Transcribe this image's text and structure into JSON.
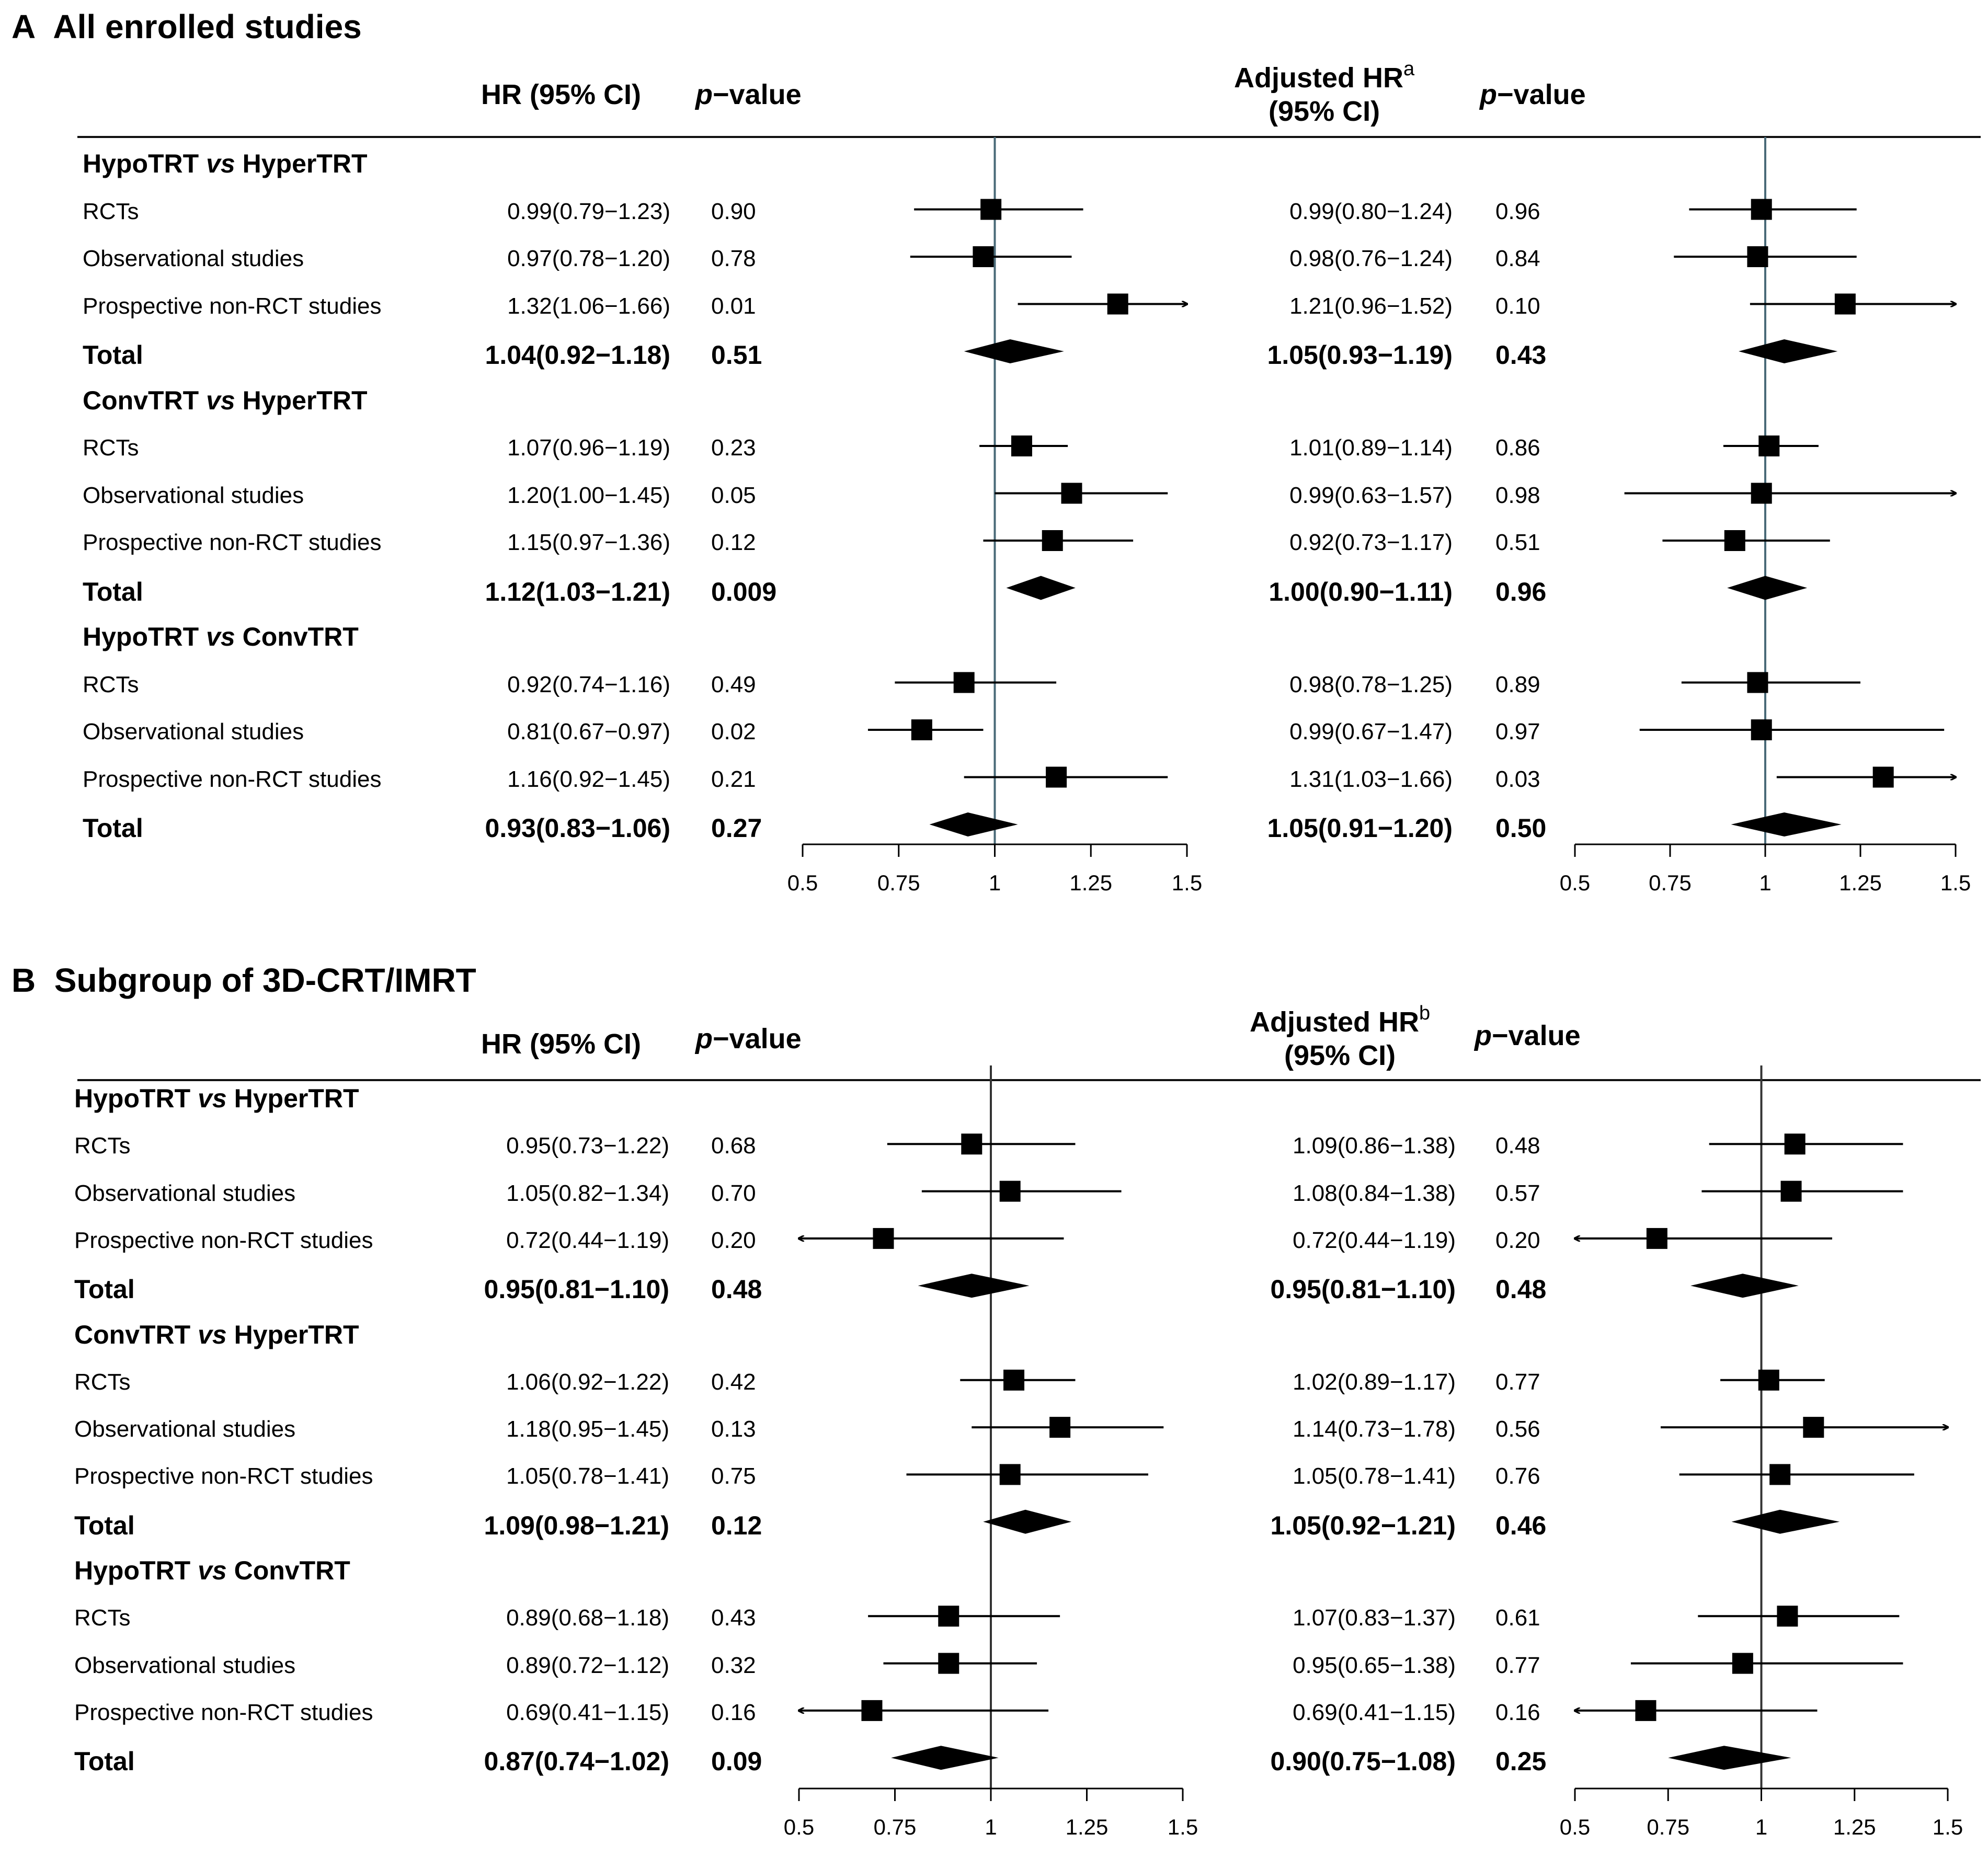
{
  "colors": {
    "ref_line_a": "#4a6a78",
    "ref_line_b": "#333333",
    "ink": "#000000"
  },
  "chart_data": [
    {
      "type": "forest",
      "panel_label": "A",
      "title": "All enrolled studies",
      "columns": {
        "hr": "HR (95% CI)",
        "p1_prefix": "p",
        "p1_suffix": "−value",
        "adj": "Adjusted HR",
        "adj_sup": "a",
        "adj_line2": "(95% CI)",
        "p2_prefix": "p",
        "p2_suffix": "−value"
      },
      "xlim": [
        0.5,
        1.5
      ],
      "reference": 1,
      "ticks": [
        0.5,
        0.75,
        1,
        1.25,
        1.5
      ],
      "tick_labels": [
        "0.5",
        "0.75",
        "1",
        "1.25",
        "1.5"
      ],
      "groups": [
        {
          "label_pre": "HypoTRT ",
          "label_vs": "vs",
          "label_post": " HyperTRT",
          "rows": [
            {
              "label": "RCTs",
              "hr_text": "0.99(0.79−1.23)",
              "p": "0.90",
              "adj_text": "0.99(0.80−1.24)",
              "p_adj": "0.96",
              "hr": 0.99,
              "lo": 0.79,
              "hi": 1.23,
              "ahr": 0.99,
              "alo": 0.8,
              "ahi": 1.24
            },
            {
              "label": "Observational studies",
              "hr_text": "0.97(0.78−1.20)",
              "p": "0.78",
              "adj_text": "0.98(0.76−1.24)",
              "p_adj": "0.84",
              "hr": 0.97,
              "lo": 0.78,
              "hi": 1.2,
              "ahr": 0.98,
              "alo": 0.76,
              "ahi": 1.24
            },
            {
              "label": "Prospective non-RCT studies",
              "hr_text": "1.32(1.06−1.66)",
              "p": "0.01",
              "adj_text": "1.21(0.96−1.52)",
              "p_adj": "0.10",
              "hr": 1.32,
              "lo": 1.06,
              "hi": 1.66,
              "ahr": 1.21,
              "alo": 0.96,
              "ahi": 1.52
            }
          ],
          "total": {
            "label": "Total",
            "hr_text": "1.04(0.92−1.18)",
            "p": "0.51",
            "adj_text": "1.05(0.93−1.19)",
            "p_adj": "0.43",
            "hr": 1.04,
            "lo": 0.92,
            "hi": 1.18,
            "ahr": 1.05,
            "alo": 0.93,
            "ahi": 1.19
          }
        },
        {
          "label_pre": "ConvTRT ",
          "label_vs": "vs",
          "label_post": " HyperTRT",
          "rows": [
            {
              "label": "RCTs",
              "hr_text": "1.07(0.96−1.19)",
              "p": "0.23",
              "adj_text": "1.01(0.89−1.14)",
              "p_adj": "0.86",
              "hr": 1.07,
              "lo": 0.96,
              "hi": 1.19,
              "ahr": 1.01,
              "alo": 0.89,
              "ahi": 1.14
            },
            {
              "label": "Observational studies",
              "hr_text": "1.20(1.00−1.45)",
              "p": "0.05",
              "adj_text": "0.99(0.63−1.57)",
              "p_adj": "0.98",
              "hr": 1.2,
              "lo": 1.0,
              "hi": 1.45,
              "ahr": 0.99,
              "alo": 0.63,
              "ahi": 1.57
            },
            {
              "label": "Prospective non-RCT studies",
              "hr_text": "1.15(0.97−1.36)",
              "p": "0.12",
              "adj_text": "0.92(0.73−1.17)",
              "p_adj": "0.51",
              "hr": 1.15,
              "lo": 0.97,
              "hi": 1.36,
              "ahr": 0.92,
              "alo": 0.73,
              "ahi": 1.17
            }
          ],
          "total": {
            "label": "Total",
            "hr_text": "1.12(1.03−1.21)",
            "p": "0.009",
            "adj_text": "1.00(0.90−1.11)",
            "p_adj": "0.96",
            "hr": 1.12,
            "lo": 1.03,
            "hi": 1.21,
            "ahr": 1.0,
            "alo": 0.9,
            "ahi": 1.11
          }
        },
        {
          "label_pre": "HypoTRT ",
          "label_vs": "vs",
          "label_post": " ConvTRT",
          "rows": [
            {
              "label": "RCTs",
              "hr_text": "0.92(0.74−1.16)",
              "p": "0.49",
              "adj_text": "0.98(0.78−1.25)",
              "p_adj": "0.89",
              "hr": 0.92,
              "lo": 0.74,
              "hi": 1.16,
              "ahr": 0.98,
              "alo": 0.78,
              "ahi": 1.25
            },
            {
              "label": "Observational studies",
              "hr_text": "0.81(0.67−0.97)",
              "p": "0.02",
              "adj_text": "0.99(0.67−1.47)",
              "p_adj": "0.97",
              "hr": 0.81,
              "lo": 0.67,
              "hi": 0.97,
              "ahr": 0.99,
              "alo": 0.67,
              "ahi": 1.47
            },
            {
              "label": "Prospective non-RCT studies",
              "hr_text": "1.16(0.92−1.45)",
              "p": "0.21",
              "adj_text": "1.31(1.03−1.66)",
              "p_adj": "0.03",
              "hr": 1.16,
              "lo": 0.92,
              "hi": 1.45,
              "ahr": 1.31,
              "alo": 1.03,
              "ahi": 1.66
            }
          ],
          "total": {
            "label": "Total",
            "hr_text": "0.93(0.83−1.06)",
            "p": "0.27",
            "adj_text": "1.05(0.91−1.20)",
            "p_adj": "0.50",
            "hr": 0.93,
            "lo": 0.83,
            "hi": 1.06,
            "ahr": 1.05,
            "alo": 0.91,
            "ahi": 1.2
          }
        }
      ]
    },
    {
      "type": "forest",
      "panel_label": "B",
      "title": "Subgroup of 3D-CRT/IMRT",
      "columns": {
        "hr": "HR (95% CI)",
        "p1_prefix": "p",
        "p1_suffix": "−value",
        "adj": "Adjusted HR",
        "adj_sup": "b",
        "adj_line2": "(95% CI)",
        "p2_prefix": "p",
        "p2_suffix": "−value"
      },
      "xlim": [
        0.5,
        1.5
      ],
      "reference": 1,
      "ticks": [
        0.5,
        0.75,
        1,
        1.25,
        1.5
      ],
      "tick_labels": [
        "0.5",
        "0.75",
        "1",
        "1.25",
        "1.5"
      ],
      "groups": [
        {
          "label_pre": "HypoTRT ",
          "label_vs": "vs",
          "label_post": " HyperTRT",
          "rows": [
            {
              "label": "RCTs",
              "hr_text": "0.95(0.73−1.22)",
              "p": "0.68",
              "adj_text": "1.09(0.86−1.38)",
              "p_adj": "0.48",
              "hr": 0.95,
              "lo": 0.73,
              "hi": 1.22,
              "ahr": 1.09,
              "alo": 0.86,
              "ahi": 1.38
            },
            {
              "label": "Observational studies",
              "hr_text": "1.05(0.82−1.34)",
              "p": "0.70",
              "adj_text": "1.08(0.84−1.38)",
              "p_adj": "0.57",
              "hr": 1.05,
              "lo": 0.82,
              "hi": 1.34,
              "ahr": 1.08,
              "alo": 0.84,
              "ahi": 1.38
            },
            {
              "label": "Prospective non-RCT studies",
              "hr_text": "0.72(0.44−1.19)",
              "p": "0.20",
              "adj_text": "0.72(0.44−1.19)",
              "p_adj": "0.20",
              "hr": 0.72,
              "lo": 0.44,
              "hi": 1.19,
              "ahr": 0.72,
              "alo": 0.44,
              "ahi": 1.19
            }
          ],
          "total": {
            "label": "Total",
            "hr_text": "0.95(0.81−1.10)",
            "p": "0.48",
            "adj_text": "0.95(0.81−1.10)",
            "p_adj": "0.48",
            "hr": 0.95,
            "lo": 0.81,
            "hi": 1.1,
            "ahr": 0.95,
            "alo": 0.81,
            "ahi": 1.1
          }
        },
        {
          "label_pre": "ConvTRT ",
          "label_vs": "vs",
          "label_post": " HyperTRT",
          "rows": [
            {
              "label": "RCTs",
              "hr_text": "1.06(0.92−1.22)",
              "p": "0.42",
              "adj_text": "1.02(0.89−1.17)",
              "p_adj": "0.77",
              "hr": 1.06,
              "lo": 0.92,
              "hi": 1.22,
              "ahr": 1.02,
              "alo": 0.89,
              "ahi": 1.17
            },
            {
              "label": "Observational studies",
              "hr_text": "1.18(0.95−1.45)",
              "p": "0.13",
              "adj_text": "1.14(0.73−1.78)",
              "p_adj": "0.56",
              "hr": 1.18,
              "lo": 0.95,
              "hi": 1.45,
              "ahr": 1.14,
              "alo": 0.73,
              "ahi": 1.78
            },
            {
              "label": "Prospective non-RCT studies",
              "hr_text": "1.05(0.78−1.41)",
              "p": "0.75",
              "adj_text": "1.05(0.78−1.41)",
              "p_adj": "0.76",
              "hr": 1.05,
              "lo": 0.78,
              "hi": 1.41,
              "ahr": 1.05,
              "alo": 0.78,
              "ahi": 1.41
            }
          ],
          "total": {
            "label": "Total",
            "hr_text": "1.09(0.98−1.21)",
            "p": "0.12",
            "adj_text": "1.05(0.92−1.21)",
            "p_adj": "0.46",
            "hr": 1.09,
            "lo": 0.98,
            "hi": 1.21,
            "ahr": 1.05,
            "alo": 0.92,
            "ahi": 1.21
          }
        },
        {
          "label_pre": "HypoTRT ",
          "label_vs": "vs",
          "label_post": " ConvTRT",
          "rows": [
            {
              "label": "RCTs",
              "hr_text": "0.89(0.68−1.18)",
              "p": "0.43",
              "adj_text": "1.07(0.83−1.37)",
              "p_adj": "0.61",
              "hr": 0.89,
              "lo": 0.68,
              "hi": 1.18,
              "ahr": 1.07,
              "alo": 0.83,
              "ahi": 1.37
            },
            {
              "label": "Observational studies",
              "hr_text": "0.89(0.72−1.12)",
              "p": "0.32",
              "adj_text": "0.95(0.65−1.38)",
              "p_adj": "0.77",
              "hr": 0.89,
              "lo": 0.72,
              "hi": 1.12,
              "ahr": 0.95,
              "alo": 0.65,
              "ahi": 1.38
            },
            {
              "label": "Prospective non-RCT studies",
              "hr_text": "0.69(0.41−1.15)",
              "p": "0.16",
              "adj_text": "0.69(0.41−1.15)",
              "p_adj": "0.16",
              "hr": 0.69,
              "lo": 0.41,
              "hi": 1.15,
              "ahr": 0.69,
              "alo": 0.41,
              "ahi": 1.15
            }
          ],
          "total": {
            "label": "Total",
            "hr_text": "0.87(0.74−1.02)",
            "p": "0.09",
            "adj_text": "0.90(0.75−1.08)",
            "p_adj": "0.25",
            "hr": 0.87,
            "lo": 0.74,
            "hi": 1.02,
            "ahr": 0.9,
            "alo": 0.75,
            "ahi": 1.08
          }
        }
      ]
    }
  ]
}
